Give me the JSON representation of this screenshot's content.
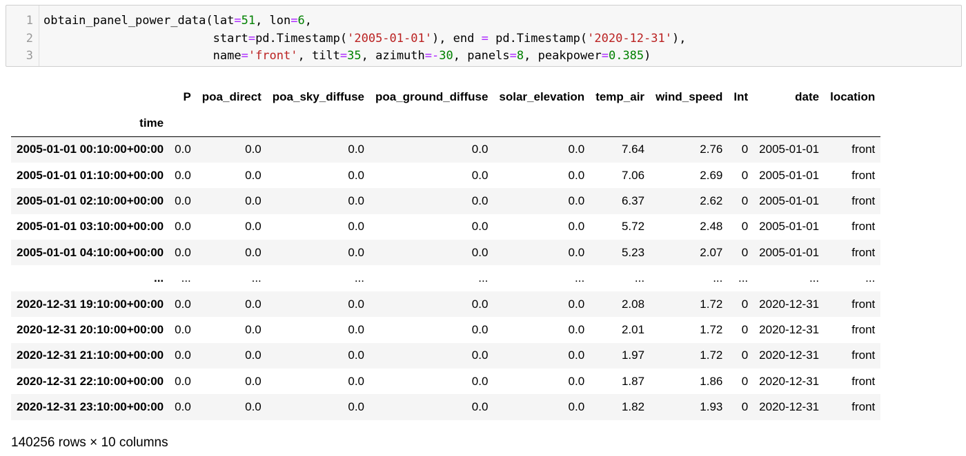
{
  "code_cell": {
    "line_numbers": [
      "1",
      "2",
      "3"
    ],
    "lines": [
      [
        {
          "t": "obtain_panel_power_data(lat",
          "c": ""
        },
        {
          "t": "=",
          "c": "op"
        },
        {
          "t": "51",
          "c": "num"
        },
        {
          "t": ", lon",
          "c": ""
        },
        {
          "t": "=",
          "c": "op"
        },
        {
          "t": "6",
          "c": "num"
        },
        {
          "t": ",",
          "c": ""
        }
      ],
      [
        {
          "t": "                        start",
          "c": ""
        },
        {
          "t": "=",
          "c": "op"
        },
        {
          "t": "pd.Timestamp(",
          "c": ""
        },
        {
          "t": "'2005-01-01'",
          "c": "str"
        },
        {
          "t": "), end ",
          "c": ""
        },
        {
          "t": "=",
          "c": "op"
        },
        {
          "t": " pd.Timestamp(",
          "c": ""
        },
        {
          "t": "'2020-12-31'",
          "c": "str"
        },
        {
          "t": "),",
          "c": ""
        }
      ],
      [
        {
          "t": "                        name",
          "c": ""
        },
        {
          "t": "=",
          "c": "op"
        },
        {
          "t": "'front'",
          "c": "str"
        },
        {
          "t": ", tilt",
          "c": ""
        },
        {
          "t": "=",
          "c": "op"
        },
        {
          "t": "35",
          "c": "num"
        },
        {
          "t": ", azimuth",
          "c": ""
        },
        {
          "t": "=-",
          "c": "op"
        },
        {
          "t": "30",
          "c": "num"
        },
        {
          "t": ", panels",
          "c": ""
        },
        {
          "t": "=",
          "c": "op"
        },
        {
          "t": "8",
          "c": "num"
        },
        {
          "t": ", peakpower",
          "c": ""
        },
        {
          "t": "=",
          "c": "op"
        },
        {
          "t": "0.385",
          "c": "num"
        },
        {
          "t": ")",
          "c": ""
        }
      ]
    ]
  },
  "dataframe": {
    "columns": [
      "P",
      "poa_direct",
      "poa_sky_diffuse",
      "poa_ground_diffuse",
      "solar_elevation",
      "temp_air",
      "wind_speed",
      "Int",
      "date",
      "location"
    ],
    "index_name": "time",
    "rows": [
      {
        "index": "2005-01-01 00:10:00+00:00",
        "cells": [
          "0.0",
          "0.0",
          "0.0",
          "0.0",
          "0.0",
          "7.64",
          "2.76",
          "0",
          "2005-01-01",
          "front"
        ]
      },
      {
        "index": "2005-01-01 01:10:00+00:00",
        "cells": [
          "0.0",
          "0.0",
          "0.0",
          "0.0",
          "0.0",
          "7.06",
          "2.69",
          "0",
          "2005-01-01",
          "front"
        ]
      },
      {
        "index": "2005-01-01 02:10:00+00:00",
        "cells": [
          "0.0",
          "0.0",
          "0.0",
          "0.0",
          "0.0",
          "6.37",
          "2.62",
          "0",
          "2005-01-01",
          "front"
        ]
      },
      {
        "index": "2005-01-01 03:10:00+00:00",
        "cells": [
          "0.0",
          "0.0",
          "0.0",
          "0.0",
          "0.0",
          "5.72",
          "2.48",
          "0",
          "2005-01-01",
          "front"
        ]
      },
      {
        "index": "2005-01-01 04:10:00+00:00",
        "cells": [
          "0.0",
          "0.0",
          "0.0",
          "0.0",
          "0.0",
          "5.23",
          "2.07",
          "0",
          "2005-01-01",
          "front"
        ]
      },
      {
        "index": "...",
        "cells": [
          "...",
          "...",
          "...",
          "...",
          "...",
          "...",
          "...",
          "...",
          "...",
          "..."
        ]
      },
      {
        "index": "2020-12-31 19:10:00+00:00",
        "cells": [
          "0.0",
          "0.0",
          "0.0",
          "0.0",
          "0.0",
          "2.08",
          "1.72",
          "0",
          "2020-12-31",
          "front"
        ]
      },
      {
        "index": "2020-12-31 20:10:00+00:00",
        "cells": [
          "0.0",
          "0.0",
          "0.0",
          "0.0",
          "0.0",
          "2.01",
          "1.72",
          "0",
          "2020-12-31",
          "front"
        ]
      },
      {
        "index": "2020-12-31 21:10:00+00:00",
        "cells": [
          "0.0",
          "0.0",
          "0.0",
          "0.0",
          "0.0",
          "1.97",
          "1.72",
          "0",
          "2020-12-31",
          "front"
        ]
      },
      {
        "index": "2020-12-31 22:10:00+00:00",
        "cells": [
          "0.0",
          "0.0",
          "0.0",
          "0.0",
          "0.0",
          "1.87",
          "1.86",
          "0",
          "2020-12-31",
          "front"
        ]
      },
      {
        "index": "2020-12-31 23:10:00+00:00",
        "cells": [
          "0.0",
          "0.0",
          "0.0",
          "0.0",
          "0.0",
          "1.82",
          "1.93",
          "0",
          "2020-12-31",
          "front"
        ]
      }
    ],
    "shape_text": "140256 rows × 10 columns"
  },
  "colors": {
    "string": "#ba2121",
    "number": "#008000",
    "operator": "#aa22ff",
    "stripe": "#f5f5f5",
    "cell_bg": "#f7f7f7"
  }
}
